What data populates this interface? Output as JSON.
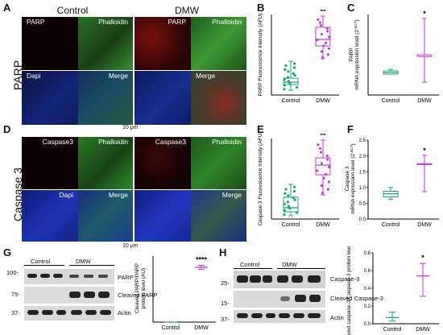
{
  "panels": {
    "A": "A",
    "B": "B",
    "C": "C",
    "D": "D",
    "E": "E",
    "F": "F",
    "G": "G",
    "H": "H"
  },
  "micro": {
    "col_control": "Control",
    "col_dmw": "DMW",
    "row1_side": "PARP",
    "row2_side": "Caspase 3",
    "row1_tiles": [
      "PARP",
      "Phalloidin",
      "Dapi",
      "Merge",
      "PARP",
      "Phalloidin",
      "Merge"
    ],
    "row2_tiles": [
      "Caspase3",
      "Phalloidin",
      "Dapi",
      "Merge",
      "Caspase3",
      "Phalloidin",
      "Merge"
    ],
    "scale_bar": "10 μm",
    "colors": {
      "red": "#b0141c",
      "green": "#2f8f2a",
      "blue": "#1a2ea8"
    }
  },
  "chart_B": {
    "type": "box",
    "ylabel": "PARP Fluorescence Intensity (AFU)",
    "categories": [
      "Control",
      "DMW"
    ],
    "sig": "**",
    "colors": [
      "#1aa37a",
      "#c43ad1"
    ]
  },
  "chart_C": {
    "type": "box",
    "ylabel_line1": "PARP",
    "ylabel_line2": "mRNA expression level (2",
    "ylabel_sup": "-ΔCT",
    "ylabel_end": ")",
    "categories": [
      "Control",
      "DMW"
    ],
    "sig": "*",
    "colors": [
      "#1aa37a",
      "#c43ad1"
    ]
  },
  "chart_E": {
    "type": "box",
    "ylabel": "Caspase 3 Fluorescence Intensity (AFU)",
    "categories": [
      "Control",
      "DMW"
    ],
    "sig": "**",
    "colors": [
      "#1aa37a",
      "#c43ad1"
    ]
  },
  "chart_F": {
    "type": "box",
    "ylabel_line1": "Caspase 3",
    "ylabel_line2": "mRNA expression level (2",
    "ylabel_sup": "-ΔCT",
    "ylabel_end": ")",
    "categories": [
      "Control",
      "DMW"
    ],
    "sig": "*",
    "colors": [
      "#1aa37a",
      "#c43ad1"
    ]
  },
  "chart_G": {
    "type": "errorbar",
    "ylabel_line1": "Cleaved PARP/PARP",
    "ylabel_line2": "protein level (AU)",
    "categories": [
      "Control",
      "DMW"
    ],
    "sig": "****",
    "colors": [
      "#1aa37a",
      "#c43ad1"
    ]
  },
  "blot_G": {
    "groups": [
      "Control",
      "DMW"
    ],
    "markers": [
      "100-",
      "75-",
      "37-"
    ],
    "rows": [
      "PARP",
      "Cleaved PARP",
      "Actin"
    ]
  },
  "blot_H": {
    "groups": [
      "Control",
      "DMW"
    ],
    "markers": [
      "25-",
      "15-",
      "37-"
    ],
    "rows": [
      "Caspase-3",
      "Cleaved Caspase-3",
      "Actin"
    ]
  },
  "chart_data": [
    {
      "type": "box",
      "panel": "B",
      "categories": [
        "Control",
        "DMW"
      ],
      "ylabel": "PARP Fluorescence Intensity (AFU)",
      "series": [
        {
          "name": "Control",
          "min": 0.06,
          "q1": 0.13,
          "median": 0.16,
          "q3": 0.21,
          "max": 0.42
        },
        {
          "name": "DMW",
          "min": 0.45,
          "q1": 0.61,
          "median": 0.69,
          "q3": 0.84,
          "max": 0.98
        }
      ],
      "ylim": [
        0,
        1
      ]
    },
    {
      "type": "box",
      "panel": "C",
      "categories": [
        "Control",
        "DMW"
      ],
      "ylabel": "PARP mRNA expression level (2-ΔCT)",
      "series": [
        {
          "name": "Control",
          "min": 0.26,
          "q1": 0.26,
          "median": 0.28,
          "q3": 0.3,
          "max": 0.32
        },
        {
          "name": "DMW",
          "min": 0.16,
          "q1": 0.48,
          "median": 0.48,
          "q3": 0.5,
          "max": 0.95
        }
      ],
      "ylim": [
        0,
        1
      ]
    },
    {
      "type": "box",
      "panel": "E",
      "categories": [
        "Control",
        "DMW"
      ],
      "ylabel": "Caspase 3 Fluorescence Intensity (AFU)",
      "series": [
        {
          "name": "Control",
          "min": 0.04,
          "q1": 0.09,
          "median": 0.14,
          "q3": 0.27,
          "max": 0.43
        },
        {
          "name": "DMW",
          "min": 0.3,
          "q1": 0.55,
          "median": 0.67,
          "q3": 0.76,
          "max": 0.98
        }
      ],
      "ylim": [
        0,
        1
      ]
    },
    {
      "type": "box",
      "panel": "F",
      "categories": [
        "Control",
        "DMW"
      ],
      "ylabel": "Caspase 3 mRNA expression level (2-ΔCT)",
      "y_ticks": [
        "0.0",
        "0.5",
        "1.0",
        "1.5",
        "2.0",
        "2.5"
      ],
      "series": [
        {
          "name": "Control",
          "min": 0.62,
          "q1": 0.7,
          "median": 0.8,
          "q3": 0.88,
          "max": 1.0
        },
        {
          "name": "DMW",
          "min": 0.87,
          "q1": 1.75,
          "median": 1.75,
          "q3": 1.75,
          "max": 2.02
        }
      ],
      "ylim": [
        0,
        2.5
      ]
    },
    {
      "type": "errorbar",
      "panel": "G",
      "categories": [
        "Control",
        "DMW"
      ],
      "ylabel": "Cleaved PARP/PARP protein level (AU)",
      "series": [
        {
          "name": "Control",
          "mean": 0.0,
          "low": 0.0,
          "high": 0.0
        },
        {
          "name": "DMW",
          "mean": 0.83,
          "low": 0.8,
          "high": 0.86
        }
      ],
      "ylim": [
        0,
        1
      ]
    },
    {
      "type": "errorbar",
      "panel": "H",
      "categories": [
        "Control",
        "DMW"
      ],
      "ylabel": "Cleaved caspase-3/Caspase-3 protein level (AU)",
      "y_ticks": [
        "0.0",
        "0.2",
        "0.4",
        "0.6",
        "0.8"
      ],
      "series": [
        {
          "name": "Control",
          "mean": 0.07,
          "low": 0.03,
          "high": 0.13
        },
        {
          "name": "DMW",
          "mean": 0.54,
          "low": 0.31,
          "high": 0.68
        }
      ],
      "ylim": [
        0,
        0.8
      ]
    }
  ]
}
